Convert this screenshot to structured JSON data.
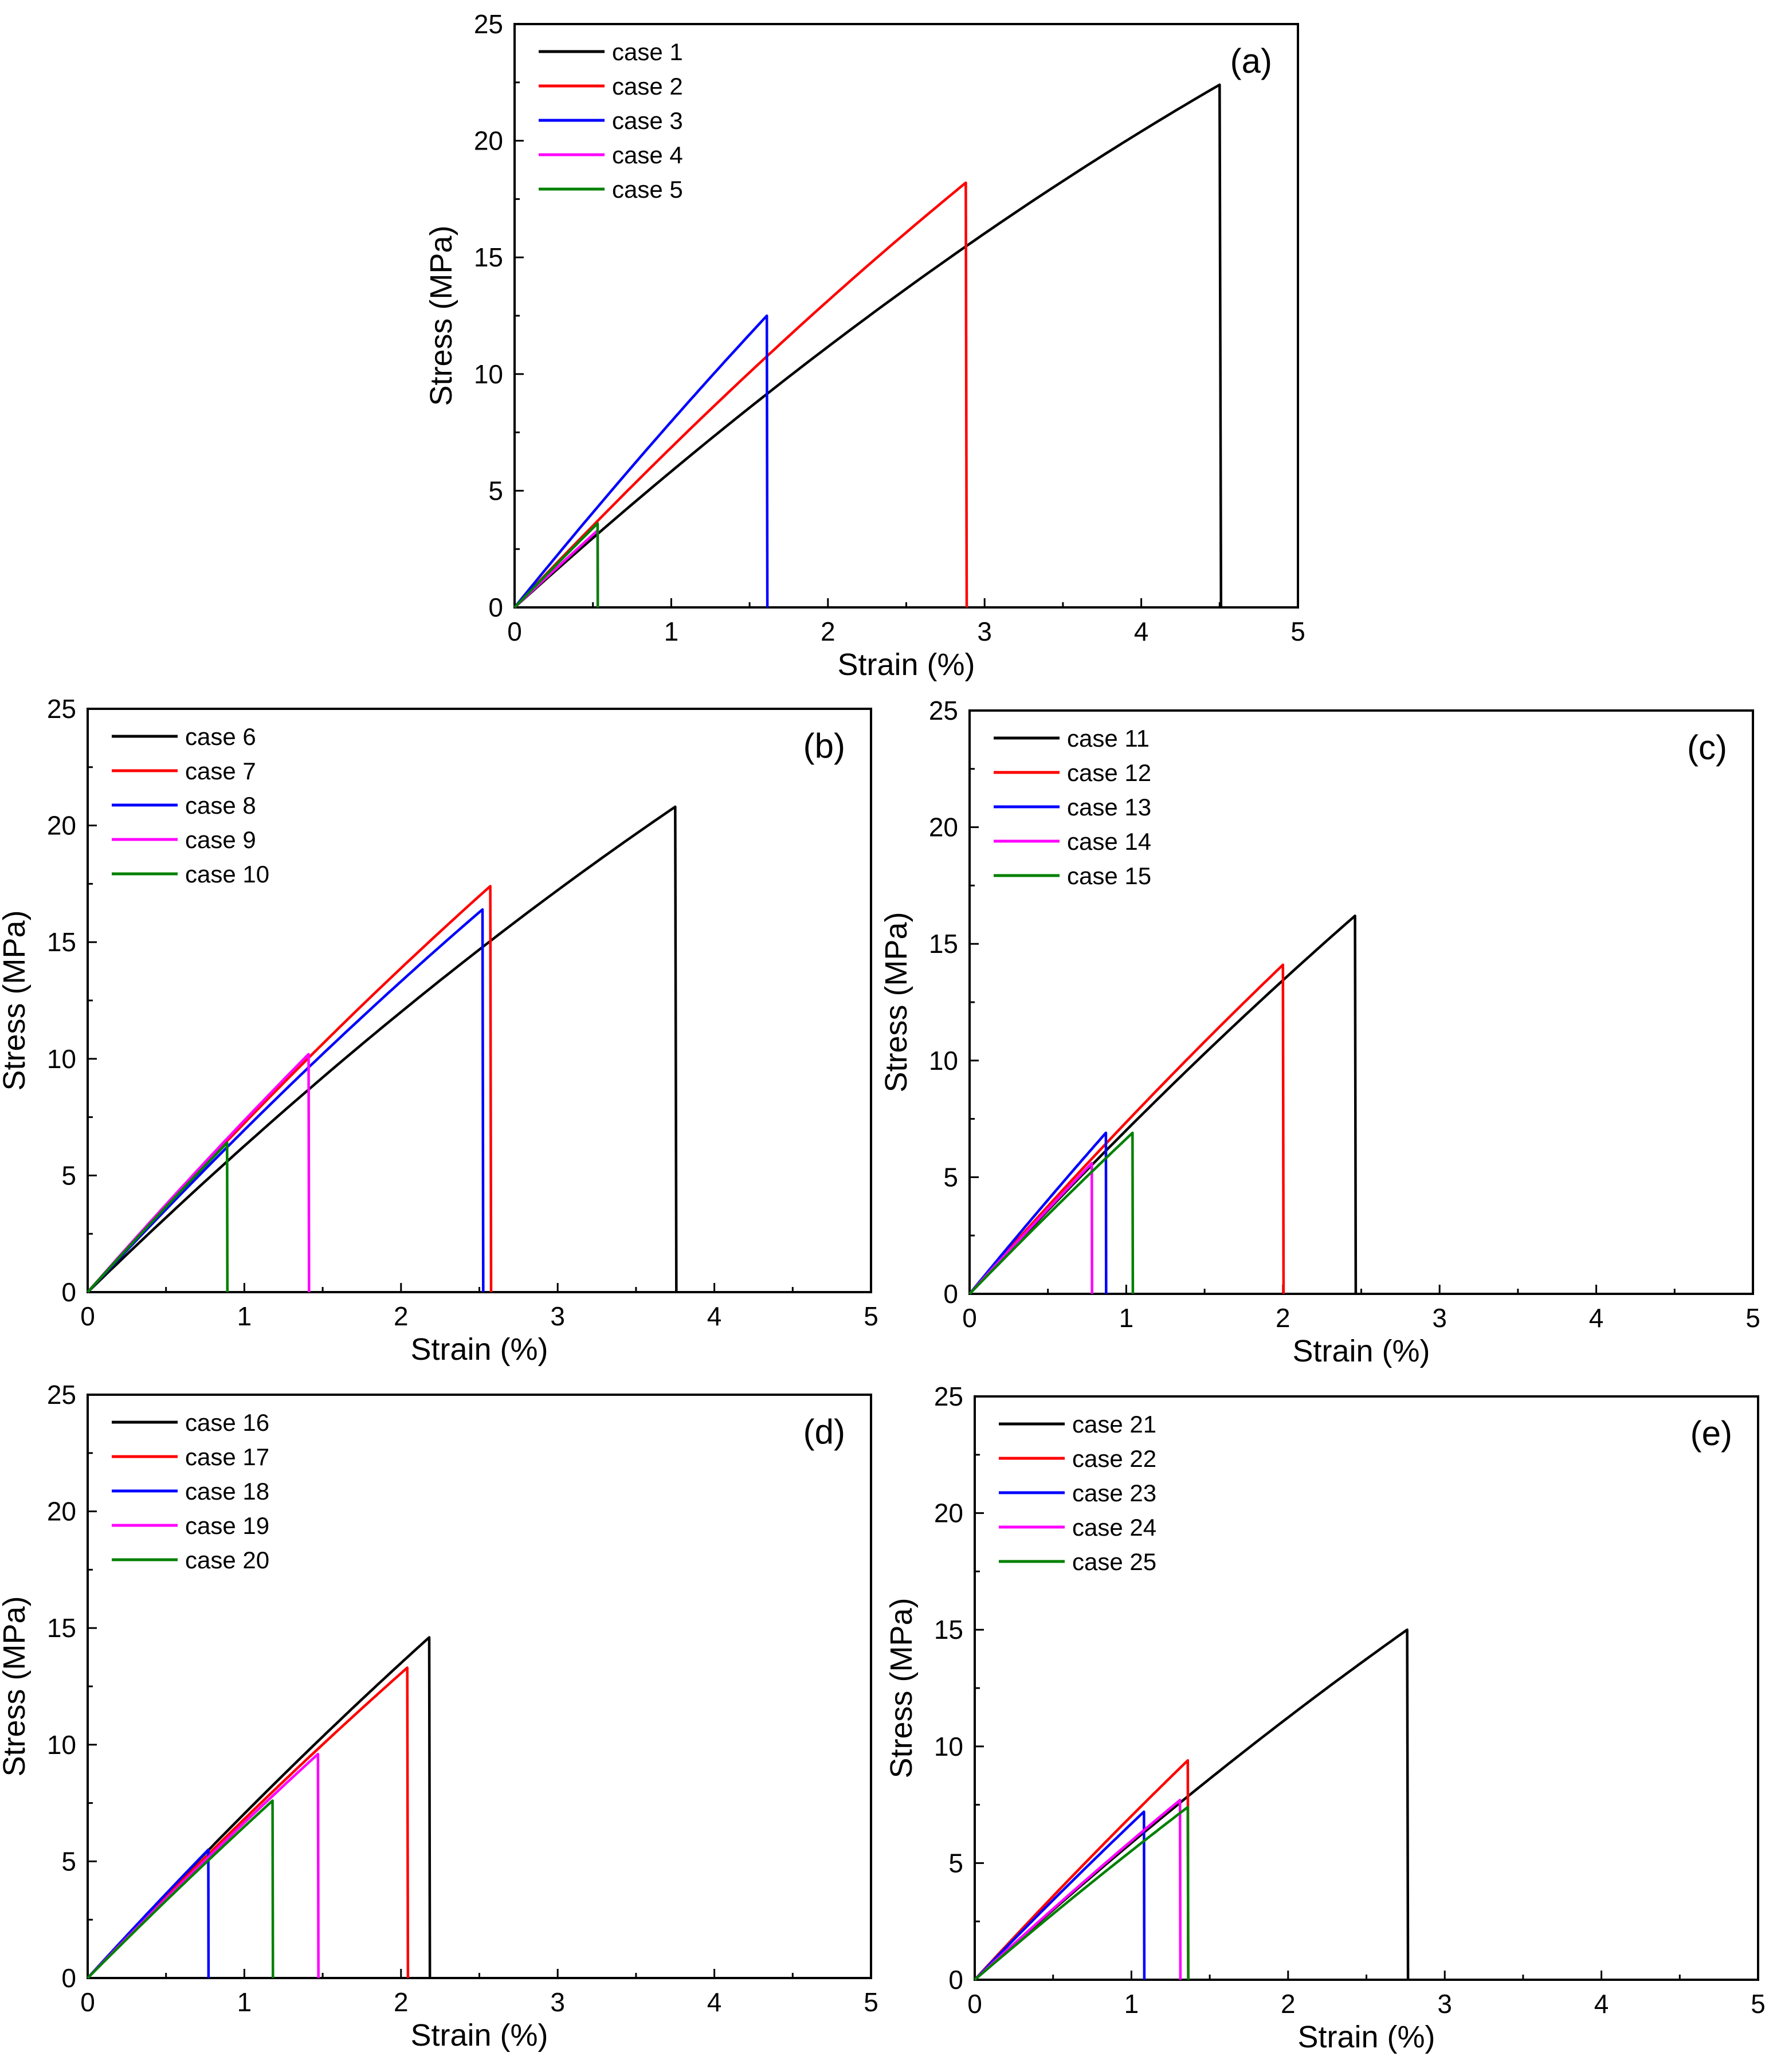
{
  "chart_data": [
    {
      "type": "line",
      "panel": "(a)",
      "xlabel": "Strain (%)",
      "ylabel": "Stress (MPa)",
      "xlim": [
        0,
        5
      ],
      "ylim": [
        0,
        25
      ],
      "xticks": [
        "0",
        "1",
        "2",
        "3",
        "4",
        "5"
      ],
      "yticks": [
        "0",
        "5",
        "10",
        "15",
        "20",
        "25"
      ],
      "series": [
        {
          "name": "case 1",
          "color": "#000000",
          "fracture_strain": 4.5,
          "peak_stress": 22.4
        },
        {
          "name": "case 2",
          "color": "#ff0000",
          "fracture_strain": 2.88,
          "peak_stress": 18.2
        },
        {
          "name": "case 3",
          "color": "#0000ff",
          "fracture_strain": 1.61,
          "peak_stress": 12.5
        },
        {
          "name": "case 4",
          "color": "#ff00ff",
          "fracture_strain": 0.53,
          "peak_stress": 3.3
        },
        {
          "name": "case 5",
          "color": "#008000",
          "fracture_strain": 0.53,
          "peak_stress": 3.6
        }
      ]
    },
    {
      "type": "line",
      "panel": "(b)",
      "xlabel": "Strain (%)",
      "ylabel": "Stress (MPa)",
      "xlim": [
        0,
        5
      ],
      "ylim": [
        0,
        25
      ],
      "xticks": [
        "0",
        "1",
        "2",
        "3",
        "4",
        "5"
      ],
      "yticks": [
        "0",
        "5",
        "10",
        "15",
        "20",
        "25"
      ],
      "series": [
        {
          "name": "case 6",
          "color": "#000000",
          "fracture_strain": 3.75,
          "peak_stress": 20.8
        },
        {
          "name": "case 7",
          "color": "#ff0000",
          "fracture_strain": 2.57,
          "peak_stress": 17.4
        },
        {
          "name": "case 8",
          "color": "#0000ff",
          "fracture_strain": 2.52,
          "peak_stress": 16.4
        },
        {
          "name": "case 9",
          "color": "#ff00ff",
          "fracture_strain": 1.41,
          "peak_stress": 10.2
        },
        {
          "name": "case 10",
          "color": "#008000",
          "fracture_strain": 0.89,
          "peak_stress": 6.4
        }
      ]
    },
    {
      "type": "line",
      "panel": "(c)",
      "xlabel": "Strain (%)",
      "ylabel": "Stress (MPa)",
      "xlim": [
        0,
        5
      ],
      "ylim": [
        0,
        25
      ],
      "xticks": [
        "0",
        "1",
        "2",
        "3",
        "4",
        "5"
      ],
      "yticks": [
        "0",
        "5",
        "10",
        "15",
        "20",
        "25"
      ],
      "series": [
        {
          "name": "case 11",
          "color": "#000000",
          "fracture_strain": 2.46,
          "peak_stress": 16.2
        },
        {
          "name": "case 12",
          "color": "#ff0000",
          "fracture_strain": 2.0,
          "peak_stress": 14.1
        },
        {
          "name": "case 13",
          "color": "#0000ff",
          "fracture_strain": 0.87,
          "peak_stress": 6.9
        },
        {
          "name": "case 14",
          "color": "#ff00ff",
          "fracture_strain": 0.78,
          "peak_stress": 5.6
        },
        {
          "name": "case 15",
          "color": "#008000",
          "fracture_strain": 1.04,
          "peak_stress": 6.9
        }
      ]
    },
    {
      "type": "line",
      "panel": "(d)",
      "xlabel": "Strain (%)",
      "ylabel": "Stress (MPa)",
      "xlim": [
        0,
        5
      ],
      "ylim": [
        0,
        25
      ],
      "xticks": [
        "0",
        "1",
        "2",
        "3",
        "4",
        "5"
      ],
      "yticks": [
        "0",
        "5",
        "10",
        "15",
        "20",
        "25"
      ],
      "series": [
        {
          "name": "case 16",
          "color": "#000000",
          "fracture_strain": 2.18,
          "peak_stress": 14.6
        },
        {
          "name": "case 17",
          "color": "#ff0000",
          "fracture_strain": 2.04,
          "peak_stress": 13.3
        },
        {
          "name": "case 18",
          "color": "#0000ff",
          "fracture_strain": 0.77,
          "peak_stress": 5.5
        },
        {
          "name": "case 19",
          "color": "#ff00ff",
          "fracture_strain": 1.47,
          "peak_stress": 9.6
        },
        {
          "name": "case 20",
          "color": "#008000",
          "fracture_strain": 1.18,
          "peak_stress": 7.6
        }
      ]
    },
    {
      "type": "line",
      "panel": "(e)",
      "xlabel": "Strain (%)",
      "ylabel": "Stress (MPa)",
      "xlim": [
        0,
        5
      ],
      "ylim": [
        0,
        25
      ],
      "xticks": [
        "0",
        "1",
        "2",
        "3",
        "4",
        "5"
      ],
      "yticks": [
        "0",
        "5",
        "10",
        "15",
        "20",
        "25"
      ],
      "series": [
        {
          "name": "case 21",
          "color": "#000000",
          "fracture_strain": 2.76,
          "peak_stress": 15.0
        },
        {
          "name": "case 22",
          "color": "#ff0000",
          "fracture_strain": 1.36,
          "peak_stress": 9.4
        },
        {
          "name": "case 23",
          "color": "#0000ff",
          "fracture_strain": 1.08,
          "peak_stress": 7.2
        },
        {
          "name": "case 24",
          "color": "#ff00ff",
          "fracture_strain": 1.31,
          "peak_stress": 7.7
        },
        {
          "name": "case 25",
          "color": "#008000",
          "fracture_strain": 1.36,
          "peak_stress": 7.4
        }
      ]
    }
  ]
}
